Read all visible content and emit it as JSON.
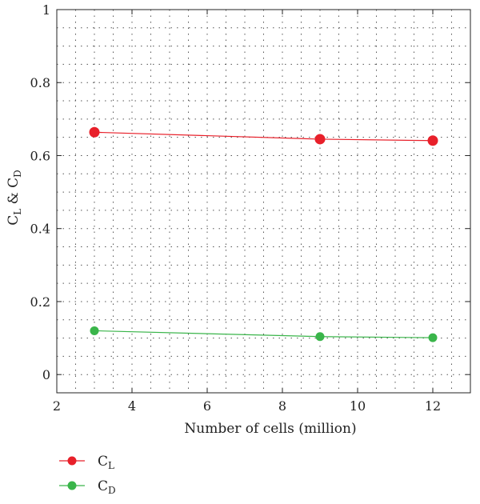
{
  "chart_data": {
    "type": "line",
    "title": "",
    "xlabel": "Number of cells (million)",
    "ylabel": {
      "main": "C",
      "sub1": "L",
      "mid": " & C",
      "sub2": "D"
    },
    "xlim": [
      2,
      13
    ],
    "ylim": [
      -0.05,
      1
    ],
    "xticks": [
      2,
      4,
      6,
      8,
      10,
      12
    ],
    "yticks": [
      0,
      0.2,
      0.4,
      0.6,
      0.8,
      1
    ],
    "xtick_labels": [
      "2",
      "4",
      "6",
      "8",
      "10",
      "12"
    ],
    "ytick_labels": [
      "0",
      "0.2",
      "0.4",
      "0.6",
      "0.8",
      "1"
    ],
    "grid": true,
    "legend_position": "bottom-left",
    "x": [
      3,
      9,
      12
    ],
    "series": [
      {
        "name": "C",
        "name_sub": "L",
        "color": "#e8202a",
        "values": [
          0.664,
          0.645,
          0.641
        ]
      },
      {
        "name": "C",
        "name_sub": "D",
        "color": "#3ab54a",
        "values": [
          0.12,
          0.104,
          0.101
        ]
      }
    ]
  }
}
